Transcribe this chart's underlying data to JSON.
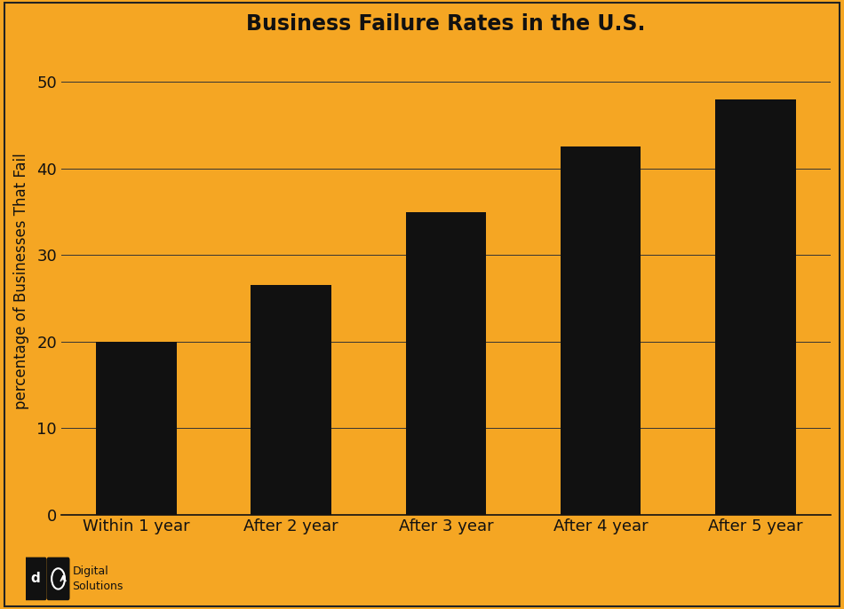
{
  "title": "Business Failure Rates in the U.S.",
  "categories": [
    "Within 1 year",
    "After 2 year",
    "After 3 year",
    "After 4 year",
    "After 5 year"
  ],
  "values": [
    20,
    26.5,
    35,
    42.5,
    48
  ],
  "bar_color": "#111111",
  "background_color": "#F5A623",
  "text_color": "#111111",
  "ylabel": "percentage of Businesses That Fail",
  "ylim": [
    0,
    54
  ],
  "yticks": [
    0,
    10,
    20,
    30,
    40,
    50
  ],
  "title_fontsize": 17,
  "label_fontsize": 12,
  "tick_fontsize": 13,
  "grid_color": "#333333",
  "grid_linewidth": 0.7,
  "bar_width": 0.52,
  "logo_text": "Digital\nSolutions",
  "logo_fontsize": 9
}
